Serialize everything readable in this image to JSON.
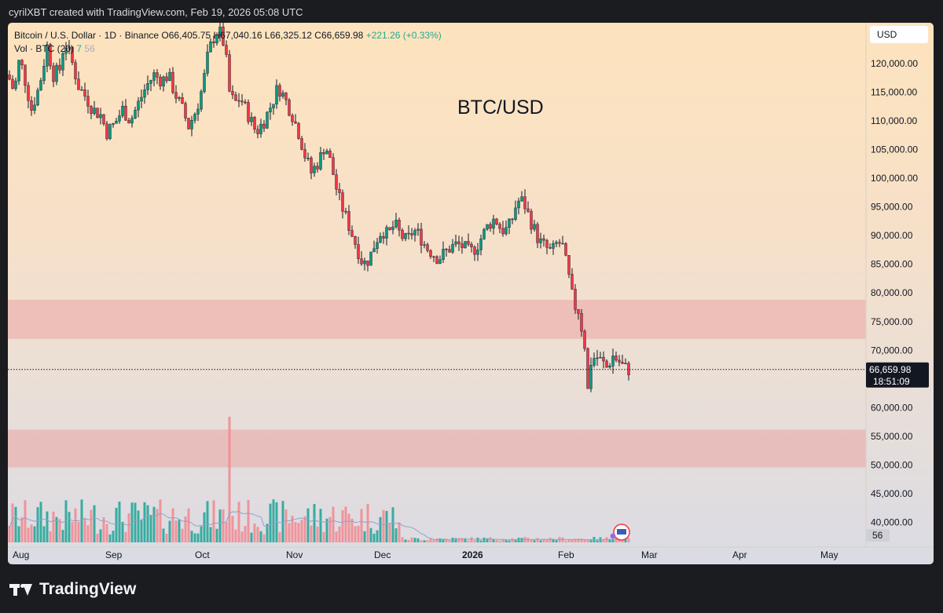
{
  "caption": "cyrilXBT created with TradingView.com, Feb 19, 2026 05:08 UTC",
  "legend": {
    "symbol": "Bitcoin / U.S. Dollar · 1D · Binance",
    "open": "O66,405.75",
    "high": "H67,040.16",
    "low": "L66,325.12",
    "close": "C66,659.98",
    "change": "+221.26 (+0.33%)",
    "vol_label": "Vol · BTC (20)",
    "vol_a": "7",
    "vol_b": "56"
  },
  "currency": "USD",
  "watermark": "BTC/USD",
  "price_tag": {
    "price": "66,659.98",
    "countdown": "18:51:09"
  },
  "vol_tag": "56",
  "footer_brand": "TradingView",
  "chart_data": {
    "type": "candlestick",
    "title": "BTC/USD",
    "ylim": [
      37500,
      126000
    ],
    "y_ticks": [
      "120,000.00",
      "115,000.00",
      "110,000.00",
      "105,000.00",
      "100,000.00",
      "95,000.00",
      "90,000.00",
      "85,000.00",
      "80,000.00",
      "75,000.00",
      "70,000.00",
      "65,000.00",
      "60,000.00",
      "55,000.00",
      "50,000.00",
      "45,000.00",
      "40,000.00"
    ],
    "x_ticks": [
      "Aug",
      "Sep",
      "Oct",
      "Nov",
      "Dec",
      "2026",
      "Feb",
      "Mar",
      "Apr",
      "May"
    ],
    "zones": [
      {
        "from": 72000,
        "to": 78800
      },
      {
        "from": 49600,
        "to": 56200
      }
    ],
    "last_price": 66659.98,
    "colors": {
      "up": "#089981",
      "down": "#f23645",
      "zone": "#eba4a4"
    },
    "path": [
      [
        0,
        118000
      ],
      [
        8,
        115000
      ],
      [
        15,
        121000
      ],
      [
        22,
        117000
      ],
      [
        30,
        112000
      ],
      [
        40,
        116000
      ],
      [
        50,
        123000
      ],
      [
        58,
        118000
      ],
      [
        66,
        119000
      ],
      [
        72,
        124000
      ],
      [
        80,
        121000
      ],
      [
        90,
        116000
      ],
      [
        100,
        114000
      ],
      [
        108,
        112000
      ],
      [
        118,
        111000
      ],
      [
        126,
        108000
      ],
      [
        136,
        109500
      ],
      [
        146,
        112000
      ],
      [
        156,
        110000
      ],
      [
        166,
        113000
      ],
      [
        176,
        116000
      ],
      [
        186,
        118000
      ],
      [
        196,
        117000
      ],
      [
        204,
        118000
      ],
      [
        212,
        115000
      ],
      [
        222,
        112000
      ],
      [
        230,
        109000
      ],
      [
        240,
        112000
      ],
      [
        248,
        116000
      ],
      [
        254,
        121000
      ],
      [
        260,
        124000
      ],
      [
        268,
        126000
      ],
      [
        276,
        123000
      ],
      [
        282,
        115000
      ],
      [
        288,
        113000
      ],
      [
        296,
        114000
      ],
      [
        306,
        111000
      ],
      [
        316,
        108000
      ],
      [
        326,
        110000
      ],
      [
        336,
        113000
      ],
      [
        344,
        116000
      ],
      [
        352,
        114000
      ],
      [
        362,
        111000
      ],
      [
        370,
        108000
      ],
      [
        378,
        104000
      ],
      [
        386,
        101000
      ],
      [
        396,
        103000
      ],
      [
        404,
        106000
      ],
      [
        412,
        102000
      ],
      [
        420,
        97000
      ],
      [
        428,
        94000
      ],
      [
        436,
        91000
      ],
      [
        444,
        88000
      ],
      [
        452,
        85000
      ],
      [
        460,
        86000
      ],
      [
        468,
        89000
      ],
      [
        476,
        91000
      ],
      [
        484,
        90000
      ],
      [
        492,
        92000
      ],
      [
        500,
        90000
      ],
      [
        508,
        89000
      ],
      [
        516,
        91000
      ],
      [
        524,
        90000
      ],
      [
        532,
        88000
      ],
      [
        540,
        87000
      ],
      [
        548,
        86000
      ],
      [
        556,
        87000
      ],
      [
        564,
        88000
      ],
      [
        572,
        88500
      ],
      [
        580,
        88000
      ],
      [
        588,
        87000
      ],
      [
        596,
        88000
      ],
      [
        604,
        90000
      ],
      [
        612,
        92000
      ],
      [
        620,
        93000
      ],
      [
        628,
        91000
      ],
      [
        636,
        91000
      ],
      [
        642,
        93000
      ],
      [
        648,
        96000
      ],
      [
        656,
        96000
      ],
      [
        664,
        93000
      ],
      [
        670,
        91000
      ],
      [
        676,
        89000
      ],
      [
        684,
        88000
      ],
      [
        692,
        87000
      ],
      [
        700,
        89000
      ],
      [
        706,
        88000
      ],
      [
        712,
        84000
      ],
      [
        716,
        81000
      ],
      [
        720,
        78000
      ],
      [
        726,
        77000
      ],
      [
        730,
        74000
      ],
      [
        734,
        71000
      ],
      [
        738,
        63000
      ],
      [
        742,
        68000
      ],
      [
        748,
        69000
      ],
      [
        756,
        68000
      ],
      [
        762,
        67000
      ],
      [
        770,
        69000
      ],
      [
        778,
        68000
      ],
      [
        784,
        67000
      ],
      [
        790,
        66660
      ]
    ],
    "volume_big": [
      {
        "x": 282,
        "v": 100
      }
    ],
    "volume_scale_note": "relative"
  }
}
